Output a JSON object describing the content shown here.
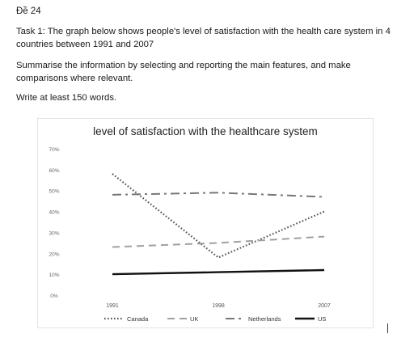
{
  "document": {
    "heading": "Đề 24",
    "task": "Task 1: The graph below shows people's level of satisfaction with the health care system in 4 countries between 1991 and 2007",
    "instruction": "Summarise the information by selecting and reporting the main features, and make comparisons where relevant.",
    "word_count": "Write at least 150 words."
  },
  "chart_data": {
    "type": "line",
    "title": "level of satisfaction with the healthcare system",
    "xlabel": "",
    "ylabel": "",
    "x": [
      "1991",
      "1998",
      "2007"
    ],
    "y_ticks": [
      "0%",
      "10%",
      "20%",
      "30%",
      "40%",
      "50%",
      "60%",
      "70%"
    ],
    "ylim": [
      0,
      70
    ],
    "grid": false,
    "legend_position": "bottom",
    "series": [
      {
        "name": "Canada",
        "values": [
          58,
          18,
          40
        ],
        "style": "dotted",
        "color": "#555555"
      },
      {
        "name": "UK",
        "values": [
          23,
          25,
          28
        ],
        "style": "dashed",
        "color": "#a0a0a0"
      },
      {
        "name": "Netherlands",
        "values": [
          48,
          49,
          47
        ],
        "style": "dashdot",
        "color": "#777777"
      },
      {
        "name": "US",
        "values": [
          10,
          11,
          12
        ],
        "style": "solid",
        "color": "#111111"
      }
    ]
  }
}
